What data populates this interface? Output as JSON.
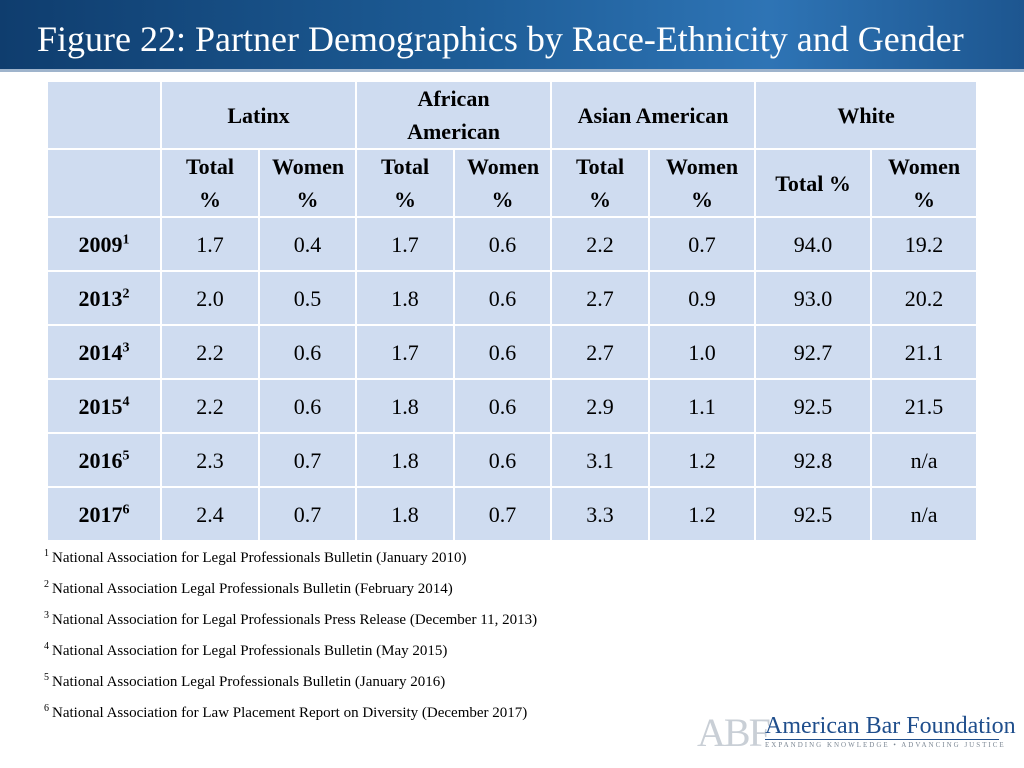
{
  "title": "Figure 22: Partner Demographics by Race-Ethnicity and Gender",
  "table": {
    "groups": [
      "Latinx",
      "African American",
      "Asian American",
      "White"
    ],
    "subheaders": [
      "Total %",
      "Women %",
      "Total %",
      "Women %",
      "Total %",
      "Women %",
      "Total %",
      "Women %"
    ],
    "rows": [
      {
        "year": "2009",
        "ref": "1",
        "values": [
          "1.7",
          "0.4",
          "1.7",
          "0.6",
          "2.2",
          "0.7",
          "94.0",
          "19.2"
        ]
      },
      {
        "year": "2013",
        "ref": "2",
        "values": [
          "2.0",
          "0.5",
          "1.8",
          "0.6",
          "2.7",
          "0.9",
          "93.0",
          "20.2"
        ]
      },
      {
        "year": "2014",
        "ref": "3",
        "values": [
          "2.2",
          "0.6",
          "1.7",
          "0.6",
          "2.7",
          "1.0",
          "92.7",
          "21.1"
        ]
      },
      {
        "year": "2015",
        "ref": "4",
        "values": [
          "2.2",
          "0.6",
          "1.8",
          "0.6",
          "2.9",
          "1.1",
          "92.5",
          "21.5"
        ]
      },
      {
        "year": "2016",
        "ref": "5",
        "values": [
          "2.3",
          "0.7",
          "1.8",
          "0.6",
          "3.1",
          "1.2",
          "92.8",
          "n/a"
        ]
      },
      {
        "year": "2017",
        "ref": "6",
        "values": [
          "2.4",
          "0.7",
          "1.8",
          "0.7",
          "3.3",
          "1.2",
          "92.5",
          "n/a"
        ]
      }
    ]
  },
  "footnotes": [
    {
      "num": "1",
      "text": "National Association for Legal Professionals Bulletin (January 2010)"
    },
    {
      "num": "2",
      "text": "National Association Legal Professionals Bulletin (February 2014)"
    },
    {
      "num": "3",
      "text": "National Association for Legal Professionals Press Release (December 11, 2013)"
    },
    {
      "num": "4",
      "text": "National Association for Legal Professionals Bulletin (May 2015)"
    },
    {
      "num": "5",
      "text": "National Association Legal Professionals Bulletin (January 2016)"
    },
    {
      "num": "6",
      "text": "National Association for Law Placement Report on Diversity (December 2017)"
    }
  ],
  "logo": {
    "abbr": "ABF",
    "name": "American Bar Foundation",
    "tagline": "EXPANDING KNOWLEDGE • ADVANCING JUSTICE"
  },
  "colors": {
    "title_bar": "#1d5c96",
    "table_cell": "#cfdcf0",
    "logo_blue": "#1f4e8c"
  }
}
